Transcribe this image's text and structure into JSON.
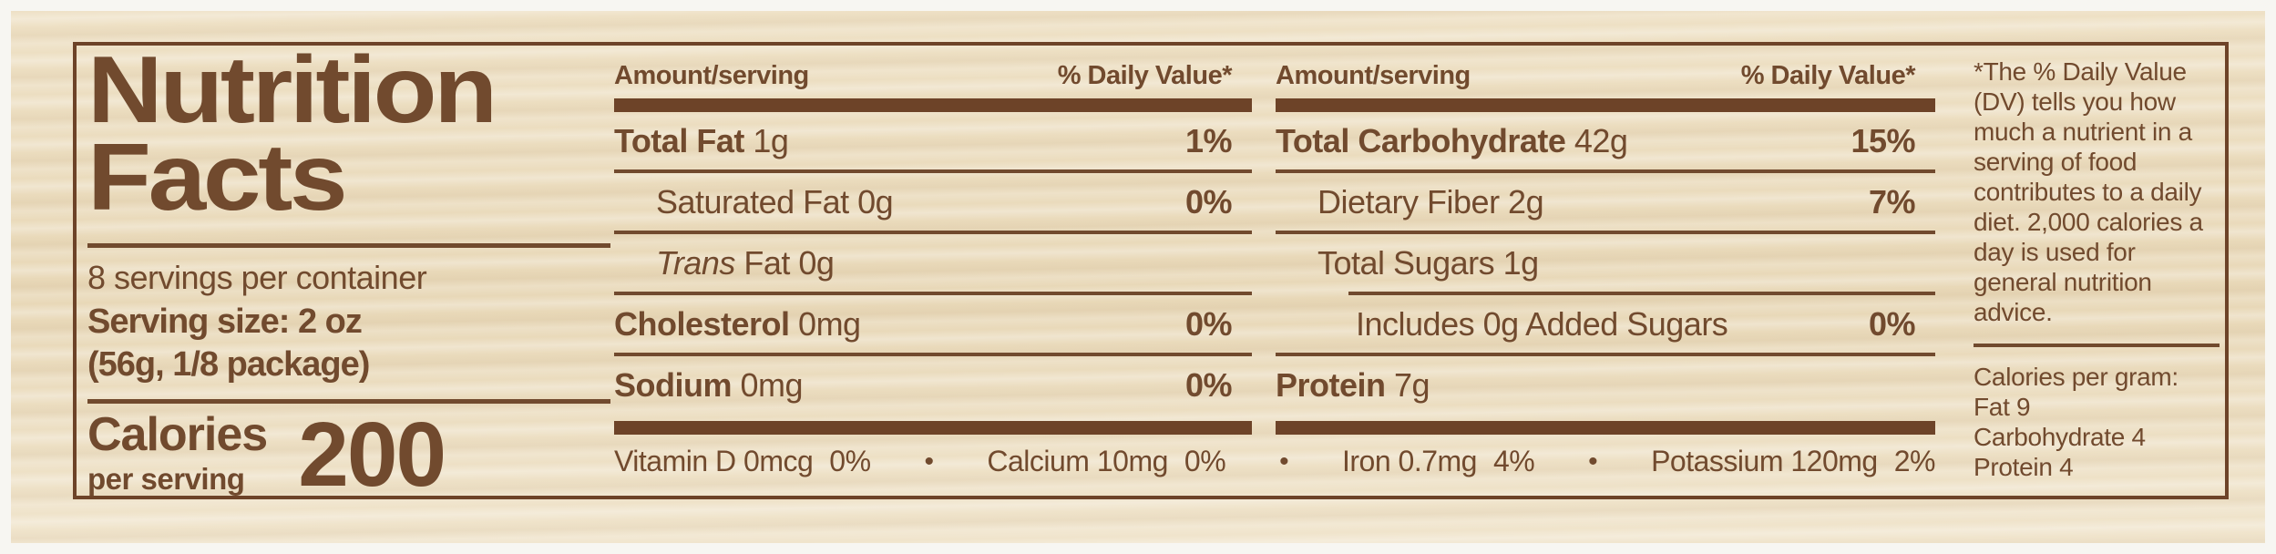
{
  "colors": {
    "ink": "#714a2e",
    "bar": "#6d4328",
    "background": "#ecddbe",
    "photo_margin": "#f7f6f2"
  },
  "title": {
    "line1": "Nutrition",
    "line2": "Facts"
  },
  "serving_info": {
    "servings_per_container": "8 servings per container",
    "serving_size": "Serving size: 2 oz",
    "serving_size_detail": "(56g, 1/8 package)"
  },
  "calories": {
    "label_line1": "Calories",
    "label_line2": "per serving",
    "value": "200"
  },
  "table": {
    "amount_header": "Amount/serving",
    "dv_header": "% Daily Value*",
    "columns": [
      {
        "rows": [
          {
            "bold": "Total Fat",
            "rest": " 1g",
            "italic": "",
            "dv": "1%",
            "indent": 0,
            "rule_before": "none"
          },
          {
            "bold": "",
            "rest": "Saturated Fat 0g",
            "italic": "",
            "dv": "0%",
            "indent": 1,
            "rule_before": "thin"
          },
          {
            "bold": "",
            "rest": " Fat 0g",
            "italic": "Trans",
            "dv": "",
            "indent": 1,
            "rule_before": "thin"
          },
          {
            "bold": "Cholesterol",
            "rest": " 0mg",
            "italic": "",
            "dv": "0%",
            "indent": 0,
            "rule_before": "thin"
          },
          {
            "bold": "Sodium",
            "rest": " 0mg",
            "italic": "",
            "dv": "0%",
            "indent": 0,
            "rule_before": "thin"
          }
        ]
      },
      {
        "rows": [
          {
            "bold": "Total Carbohydrate",
            "rest": " 42g",
            "italic": "",
            "dv": "15%",
            "indent": 0,
            "rule_before": "none"
          },
          {
            "bold": "",
            "rest": "Dietary Fiber 2g",
            "italic": "",
            "dv": "7%",
            "indent": 1,
            "rule_before": "thin"
          },
          {
            "bold": "",
            "rest": "Total Sugars 1g",
            "italic": "",
            "dv": "",
            "indent": 1,
            "rule_before": "thin"
          },
          {
            "bold": "",
            "rest": "Includes 0g Added Sugars",
            "italic": "",
            "dv": "0%",
            "indent": 2,
            "rule_before": "thin-indented"
          },
          {
            "bold": "Protein",
            "rest": " 7g",
            "italic": "",
            "dv": "",
            "indent": 0,
            "rule_before": "thin"
          }
        ]
      }
    ]
  },
  "micronutrients": {
    "bullet": "•",
    "items": [
      {
        "text": "Vitamin D 0mcg",
        "dv": "0%"
      },
      {
        "text": "Calcium 10mg",
        "dv": "0%"
      },
      {
        "text": "Iron 0.7mg",
        "dv": "4%"
      },
      {
        "text": "Potassium 120mg",
        "dv": "2%"
      }
    ]
  },
  "footnote": {
    "daily_value_note": "*The % Daily Value (DV) tells you how much a nutrient in a serving of food contributes to a daily diet. 2,000 calories a day is used for general nutrition advice.",
    "calories_per_gram": "Calories per gram:\nFat 9\nCarbohydrate 4\nProtein 4"
  }
}
